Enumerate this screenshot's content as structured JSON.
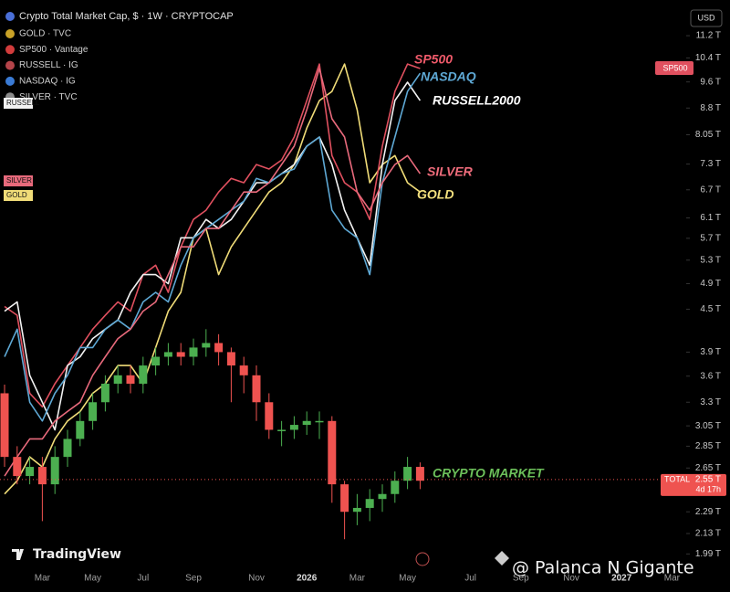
{
  "chart_data": {
    "type": "candlestick",
    "log_scale": true,
    "grid": false,
    "candles": {
      "name": "Crypto Total Market Cap, $ · 1W · CRYPTOCAP",
      "up_color": "#4caf50",
      "down_color": "#ef5350",
      "open": [
        3.4,
        2.75,
        2.58,
        2.66,
        2.51,
        2.75,
        2.92,
        3.1,
        3.3,
        3.51,
        3.61,
        3.51,
        3.73,
        3.84,
        3.9,
        3.84,
        3.96,
        4.02,
        3.9,
        3.73,
        3.61,
        3.3,
        3.01,
        3.01,
        3.06,
        3.1,
        3.1,
        2.51,
        2.29,
        2.32,
        2.39,
        2.43,
        2.54,
        2.66,
        null,
        null,
        null,
        null,
        null,
        null,
        null,
        null,
        null,
        null,
        null,
        null,
        null,
        null,
        null,
        null,
        null,
        null,
        null,
        null
      ],
      "high": [
        3.5,
        2.85,
        2.75,
        2.75,
        2.85,
        3.01,
        3.2,
        3.4,
        3.61,
        3.73,
        3.73,
        3.84,
        3.96,
        4.02,
        4.02,
        4.08,
        4.21,
        4.14,
        3.96,
        3.84,
        3.73,
        3.4,
        3.1,
        3.15,
        3.2,
        3.2,
        3.15,
        2.54,
        2.43,
        2.47,
        2.51,
        2.62,
        2.75,
        2.7,
        null,
        null,
        null,
        null,
        null,
        null,
        null,
        null,
        null,
        null,
        null,
        null,
        null,
        null,
        null,
        null,
        null,
        null,
        null,
        null
      ],
      "low": [
        2.66,
        2.51,
        2.51,
        2.22,
        2.43,
        2.66,
        2.85,
        3.01,
        3.2,
        3.4,
        3.4,
        3.4,
        3.61,
        3.73,
        3.73,
        3.73,
        3.84,
        3.73,
        3.3,
        3.4,
        3.1,
        2.92,
        2.85,
        2.92,
        2.96,
        2.92,
        2.36,
        2.09,
        2.19,
        2.22,
        2.29,
        2.36,
        2.47,
        2.47,
        null,
        null,
        null,
        null,
        null,
        null,
        null,
        null,
        null,
        null,
        null,
        null,
        null,
        null,
        null,
        null,
        null,
        null,
        null,
        null
      ],
      "close": [
        2.75,
        2.58,
        2.66,
        2.51,
        2.75,
        2.92,
        3.1,
        3.3,
        3.51,
        3.61,
        3.51,
        3.73,
        3.84,
        3.9,
        3.84,
        3.96,
        4.02,
        3.9,
        3.73,
        3.61,
        3.3,
        3.01,
        3.01,
        3.06,
        3.1,
        3.1,
        2.51,
        2.29,
        2.32,
        2.39,
        2.43,
        2.54,
        2.66,
        2.54,
        null,
        null,
        null,
        null,
        null,
        null,
        null,
        null,
        null,
        null,
        null,
        null,
        null,
        null,
        null,
        null,
        null,
        null,
        null,
        null
      ]
    },
    "categories": [
      null,
      null,
      null,
      "Mar",
      null,
      null,
      null,
      "May",
      null,
      null,
      null,
      "Jul",
      null,
      null,
      null,
      "Sep",
      null,
      null,
      null,
      null,
      "Nov",
      null,
      null,
      null,
      "2026",
      null,
      null,
      null,
      "Mar",
      null,
      null,
      null,
      "May",
      null,
      null,
      null,
      null,
      "Jul",
      null,
      null,
      null,
      "Sep",
      null,
      null,
      null,
      "Nov",
      null,
      null,
      null,
      "2027",
      null,
      null,
      null,
      "Mar"
    ],
    "series": [
      {
        "name": "GOLD · TVC",
        "color": "#f0dc78",
        "icon_color": "#c9a227",
        "values": [
          2.43,
          2.54,
          2.75,
          2.66,
          2.92,
          3.1,
          3.2,
          3.4,
          3.51,
          3.73,
          3.73,
          3.51,
          3.96,
          4.47,
          4.76,
          5.71,
          5.89,
          5.05,
          5.54,
          5.89,
          6.26,
          6.65,
          6.86,
          7.29,
          8.23,
          9.02,
          9.3,
          10.19,
          8.75,
          6.86,
          7.29,
          7.51,
          6.86,
          6.65,
          null,
          null,
          null,
          null,
          null,
          null,
          null,
          null,
          null,
          null,
          null,
          null,
          null,
          null,
          null,
          null,
          null,
          null,
          null,
          null
        ]
      },
      {
        "name": "SP500 · Vantage",
        "color": "#e0505f",
        "icon_color": "#d23c3c",
        "values": [
          4.54,
          4.41,
          3.4,
          3.25,
          3.51,
          3.73,
          3.96,
          4.21,
          4.41,
          4.61,
          4.47,
          5.05,
          5.21,
          4.76,
          5.54,
          6.07,
          6.26,
          6.65,
          6.96,
          6.86,
          7.29,
          7.18,
          7.4,
          7.99,
          9.02,
          10.19,
          7.51,
          6.86,
          6.65,
          6.07,
          7.75,
          9.3,
          10.19,
          10.04,
          null,
          null,
          null,
          null,
          null,
          null,
          null,
          null,
          null,
          null,
          null,
          null,
          null,
          null,
          null,
          null,
          null,
          null,
          null,
          null
        ]
      },
      {
        "name": "RUSSELL · IG",
        "color": "#f2f2f2",
        "icon_color": "#b4444a",
        "values": [
          4.47,
          4.61,
          3.61,
          3.3,
          3.01,
          3.73,
          3.84,
          4.08,
          4.21,
          4.34,
          4.76,
          5.05,
          5.05,
          4.9,
          5.71,
          5.71,
          6.07,
          5.89,
          6.07,
          6.45,
          6.86,
          6.86,
          7.07,
          7.29,
          7.75,
          7.99,
          7.29,
          6.26,
          5.71,
          5.21,
          7.29,
          9.02,
          9.59,
          9.02,
          null,
          null,
          null,
          null,
          null,
          null,
          null,
          null,
          null,
          null,
          null,
          null,
          null,
          null,
          null,
          null,
          null,
          null,
          null,
          null
        ]
      },
      {
        "name": "NASDAQ · IG",
        "color": "#5ea8d4",
        "icon_color": "#3a7bd5",
        "values": [
          3.84,
          4.21,
          3.3,
          3.1,
          3.4,
          3.61,
          3.96,
          3.96,
          4.21,
          4.34,
          4.21,
          4.61,
          4.76,
          4.61,
          5.21,
          5.71,
          5.89,
          6.07,
          6.26,
          6.45,
          6.96,
          6.86,
          7.07,
          7.18,
          7.75,
          7.99,
          6.26,
          5.89,
          5.71,
          5.05,
          6.86,
          7.99,
          9.3,
          9.88,
          null,
          null,
          null,
          null,
          null,
          null,
          null,
          null,
          null,
          null,
          null,
          null,
          null,
          null,
          null,
          null,
          null,
          null,
          null,
          null
        ]
      },
      {
        "name": "SILVER · TVC",
        "color": "#e86a7c",
        "icon_color": "#8a8a8a",
        "values": [
          2.58,
          2.75,
          2.92,
          2.92,
          3.1,
          3.2,
          3.3,
          3.61,
          3.84,
          4.08,
          4.21,
          4.47,
          4.61,
          5.05,
          5.54,
          5.54,
          5.89,
          5.89,
          6.26,
          6.65,
          6.65,
          6.86,
          7.29,
          7.75,
          8.75,
          10.04,
          8.49,
          7.99,
          6.65,
          6.26,
          6.86,
          7.29,
          7.51,
          7.07,
          null,
          null,
          null,
          null,
          null,
          null,
          null,
          null,
          null,
          null,
          null,
          null,
          null,
          null,
          null,
          null,
          null,
          null,
          null,
          null
        ]
      }
    ],
    "ylim": [
      1.88,
      11.87
    ],
    "yticks": [
      {
        "value": 11.2,
        "label": "11.2 T"
      },
      {
        "value": 10.4,
        "label": "10.4 T"
      },
      {
        "value": 9.6,
        "label": "9.6 T"
      },
      {
        "value": 8.8,
        "label": "8.8 T"
      },
      {
        "value": 8.05,
        "label": "8.05 T"
      },
      {
        "value": 7.3,
        "label": "7.3 T"
      },
      {
        "value": 6.7,
        "label": "6.7 T"
      },
      {
        "value": 6.1,
        "label": "6.1 T"
      },
      {
        "value": 5.7,
        "label": "5.7 T"
      },
      {
        "value": 5.3,
        "label": "5.3 T"
      },
      {
        "value": 4.9,
        "label": "4.9 T"
      },
      {
        "value": 4.5,
        "label": "4.5 T"
      },
      {
        "value": 3.9,
        "label": "3.9 T"
      },
      {
        "value": 3.6,
        "label": "3.6 T"
      },
      {
        "value": 3.3,
        "label": "3.3 T"
      },
      {
        "value": 3.05,
        "label": "3.05 T"
      },
      {
        "value": 2.85,
        "label": "2.85 T"
      },
      {
        "value": 2.65,
        "label": "2.65 T"
      },
      {
        "value": 2.29,
        "label": "2.29 T"
      },
      {
        "value": 2.13,
        "label": "2.13 T"
      },
      {
        "value": 1.99,
        "label": "1.99 T"
      }
    ],
    "currency": "USD",
    "last": {
      "label": "TOTAL",
      "value": 2.55,
      "value_label": "2.55 T",
      "countdown": "4d 17h",
      "color": "#ef5350"
    },
    "right_badge": {
      "text": "SP500",
      "color": "#e0505f"
    },
    "left_badges": [
      {
        "text": "RUSSELL",
        "color": "#f2f2f2"
      },
      {
        "text": "SILVER",
        "color": "#e86a7c"
      },
      {
        "text": "GOLD",
        "color": "#f0dc78"
      }
    ],
    "annotations": [
      {
        "text": "SP500",
        "color": "#ef5a6a"
      },
      {
        "text": "NASDAQ",
        "color": "#5ea8d4"
      },
      {
        "text": "RUSSELL2000",
        "color": "#ffffff"
      },
      {
        "text": "SILVER",
        "color": "#ef6c7b"
      },
      {
        "text": "GOLD",
        "color": "#f3e07e"
      },
      {
        "text": "CRYPTO MARKET",
        "color": "#6cbf5a"
      }
    ],
    "brand": "TradingView",
    "watermark": "@ Palanca N Gigante"
  }
}
